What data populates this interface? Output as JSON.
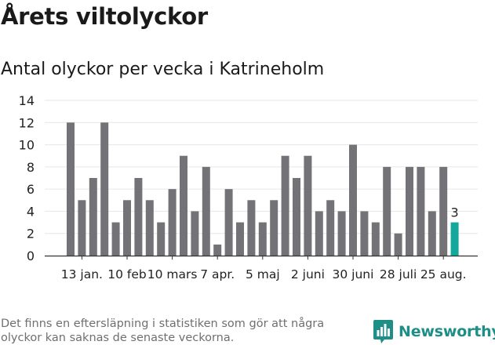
{
  "header": {
    "title": "Årets viltolyckor",
    "subtitle": "Antal olyckor per vecka i Katrineholm"
  },
  "footnote": "Det finns en eftersläpning i statistiken som gör att några olyckor kan saknas de senaste veckorna.",
  "brand": {
    "name": "Newsworthy",
    "icon": "newsworthy-logo-icon",
    "color": "#1d8f86"
  },
  "chart_data": {
    "type": "bar",
    "title": "Antal olyckor per vecka i Katrineholm",
    "xlabel": "",
    "ylabel": "",
    "ylim": [
      0,
      14
    ],
    "yticks": [
      0,
      2,
      4,
      6,
      8,
      10,
      12,
      14
    ],
    "grid": true,
    "legend": "none",
    "colors": {
      "bar": "#737276",
      "highlight": "#12a89b",
      "grid": "#e6e6e6",
      "axis": "#333333"
    },
    "x_tick_labels": [
      "13 jan.",
      "10 feb",
      "10 mars",
      "7 apr.",
      "5 maj",
      "2 juni",
      "30 juni",
      "28 juli",
      "25 aug."
    ],
    "x_tick_bar_index": [
      1,
      5,
      9,
      13,
      17,
      21,
      25,
      29,
      33
    ],
    "values": [
      12,
      5,
      7,
      12,
      3,
      5,
      7,
      5,
      3,
      6,
      9,
      4,
      8,
      1,
      6,
      3,
      5,
      3,
      5,
      9,
      7,
      9,
      4,
      5,
      4,
      10,
      4,
      3,
      8,
      2,
      8,
      8,
      4,
      8,
      3
    ],
    "highlight_index": 34,
    "highlight_label": "3"
  }
}
